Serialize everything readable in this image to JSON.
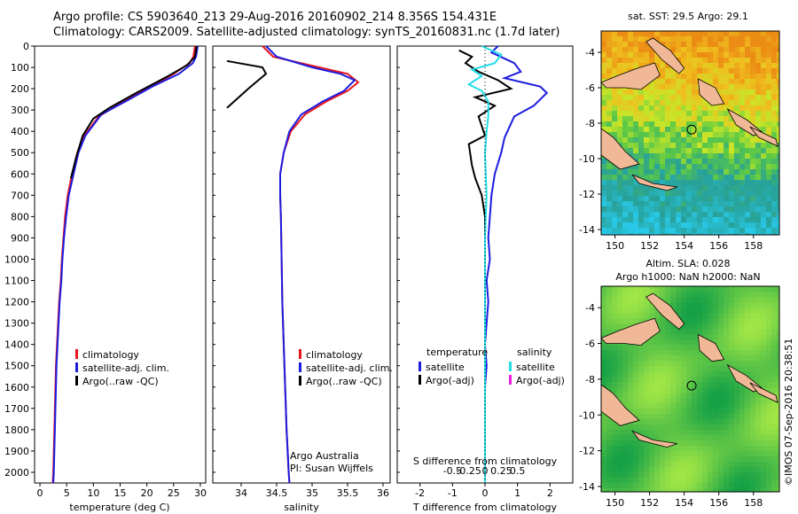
{
  "header": {
    "line1": "Argo profile: CS 5903640_213 29-Aug-2016 20160902_214 8.356S 154.431E",
    "line2": "Climatology: CARS2009. Satellite-adjusted climatology: synTS_20160831.nc (1.7d later)"
  },
  "side_stamp": "©IMOS 07-Sep-2016 20:38:51",
  "colors": {
    "climatology": "#e8141e",
    "satellite": "#1c1ce0",
    "argo": "#000000",
    "sal_sat": "#22dde8",
    "sal_argo": "#e81ee0",
    "land": "#f0b896"
  },
  "chart_data": [
    {
      "type": "line",
      "panel": "temperature",
      "xlabel": "temperature (deg C)",
      "xlim": [
        -1,
        31
      ],
      "xticks": [
        0,
        5,
        10,
        15,
        20,
        25,
        30
      ],
      "ylim": [
        2050,
        0
      ],
      "yticks": [
        0,
        100,
        200,
        300,
        400,
        500,
        600,
        700,
        800,
        900,
        1000,
        1100,
        1200,
        1300,
        1400,
        1500,
        1600,
        1700,
        1800,
        1900,
        2000
      ],
      "legend": [
        "climatology",
        "satellite-adj. clim.",
        "Argo(..raw -QC)"
      ],
      "series": [
        {
          "name": "climatology",
          "color": "#e8141e",
          "points": [
            [
              29,
              0
            ],
            [
              28.7,
              50
            ],
            [
              28,
              80
            ],
            [
              25,
              130
            ],
            [
              20,
              200
            ],
            [
              15,
              270
            ],
            [
              11,
              330
            ],
            [
              8,
              430
            ],
            [
              7,
              500
            ],
            [
              6,
              600
            ],
            [
              5.2,
              700
            ],
            [
              4.7,
              800
            ],
            [
              4.4,
              900
            ],
            [
              4.1,
              1000
            ],
            [
              3.9,
              1100
            ],
            [
              3.6,
              1200
            ],
            [
              3.4,
              1300
            ],
            [
              3.2,
              1400
            ],
            [
              3.0,
              1500
            ],
            [
              2.9,
              1600
            ],
            [
              2.8,
              1700
            ],
            [
              2.7,
              1800
            ],
            [
              2.6,
              1900
            ],
            [
              2.5,
              2000
            ],
            [
              2.4,
              2050
            ]
          ]
        },
        {
          "name": "satellite-adj. clim.",
          "color": "#1c1ce0",
          "points": [
            [
              29.5,
              0
            ],
            [
              29.2,
              50
            ],
            [
              28.6,
              80
            ],
            [
              26,
              130
            ],
            [
              21,
              190
            ],
            [
              16,
              260
            ],
            [
              11.5,
              320
            ],
            [
              8.5,
              420
            ],
            [
              7.2,
              500
            ],
            [
              6.3,
              600
            ],
            [
              5.4,
              700
            ],
            [
              4.9,
              800
            ],
            [
              4.5,
              900
            ],
            [
              4.2,
              1000
            ],
            [
              4.0,
              1100
            ],
            [
              3.7,
              1200
            ],
            [
              3.5,
              1300
            ],
            [
              3.3,
              1400
            ],
            [
              3.1,
              1500
            ],
            [
              3.0,
              1600
            ],
            [
              2.9,
              1700
            ],
            [
              2.8,
              1800
            ],
            [
              2.7,
              1900
            ],
            [
              2.6,
              2000
            ],
            [
              2.5,
              2050
            ]
          ]
        },
        {
          "name": "Argo(..raw -QC)",
          "color": "#000000",
          "points": [
            [
              29.3,
              0
            ],
            [
              29,
              50
            ],
            [
              27.5,
              90
            ],
            [
              24,
              140
            ],
            [
              18,
              220
            ],
            [
              13,
              290
            ],
            [
              10,
              340
            ],
            [
              8,
              420
            ],
            [
              6.8,
              520
            ],
            [
              5.8,
              620
            ]
          ]
        }
      ]
    },
    {
      "type": "line",
      "panel": "salinity",
      "xlabel": "salinity",
      "xlim": [
        33.6,
        36.1
      ],
      "xticks": [
        34,
        34.5,
        35,
        35.5,
        36
      ],
      "ylim": [
        2050,
        0
      ],
      "legend": [
        "climatology",
        "satellite-adj. clim.",
        "Argo(..raw -QC)"
      ],
      "annotation": [
        "Argo Australia",
        "PI: Susan Wijffels"
      ],
      "series": [
        {
          "name": "climatology",
          "color": "#e8141e",
          "points": [
            [
              34.3,
              0
            ],
            [
              34.45,
              50
            ],
            [
              35.1,
              100
            ],
            [
              35.5,
              130
            ],
            [
              35.65,
              170
            ],
            [
              35.5,
              210
            ],
            [
              35.2,
              260
            ],
            [
              34.9,
              320
            ],
            [
              34.7,
              400
            ],
            [
              34.6,
              500
            ],
            [
              34.55,
              600
            ],
            [
              34.55,
              700
            ],
            [
              34.56,
              800
            ],
            [
              34.57,
              1000
            ],
            [
              34.58,
              1200
            ],
            [
              34.6,
              1400
            ],
            [
              34.62,
              1600
            ],
            [
              34.64,
              1800
            ],
            [
              34.67,
              2000
            ],
            [
              34.68,
              2050
            ]
          ]
        },
        {
          "name": "satellite-adj. clim.",
          "color": "#1c1ce0",
          "points": [
            [
              34.35,
              0
            ],
            [
              34.5,
              50
            ],
            [
              35.0,
              100
            ],
            [
              35.4,
              130
            ],
            [
              35.6,
              160
            ],
            [
              35.45,
              210
            ],
            [
              35.15,
              260
            ],
            [
              34.85,
              320
            ],
            [
              34.68,
              400
            ],
            [
              34.6,
              500
            ],
            [
              34.55,
              600
            ],
            [
              34.55,
              700
            ],
            [
              34.56,
              800
            ],
            [
              34.57,
              1000
            ],
            [
              34.58,
              1200
            ],
            [
              34.6,
              1400
            ],
            [
              34.62,
              1600
            ],
            [
              34.64,
              1800
            ],
            [
              34.67,
              2000
            ],
            [
              34.68,
              2050
            ]
          ]
        },
        {
          "name": "Argo(..raw -QC)",
          "color": "#000000",
          "points": [
            [
              33.8,
              70
            ],
            [
              34.3,
              100
            ],
            [
              34.35,
              130
            ],
            [
              34.1,
              200
            ],
            [
              33.8,
              290
            ]
          ]
        }
      ]
    },
    {
      "type": "line",
      "panel": "difference",
      "xlabel_top": "S difference from climatology",
      "xlabel_bottom": "T difference from climatology",
      "xticks_T": [
        -2,
        -1,
        0,
        1,
        2
      ],
      "xticks_S_labels": [
        "-0.5",
        "-0.25",
        "0",
        "0.25",
        "0.5"
      ],
      "xticks_S_values": [
        -1,
        -0.5,
        0,
        0.5,
        1
      ],
      "xlim": [
        -2.7,
        2.7
      ],
      "ylim": [
        2050,
        0
      ],
      "legend_temperature": {
        "title": "temperature",
        "items": [
          "satellite",
          "Argo(-adj)"
        ]
      },
      "legend_salinity": {
        "title": "salinity",
        "items": [
          "satellite",
          "Argo(-adj)"
        ]
      },
      "series": [
        {
          "name": "T satellite",
          "color": "#1c1ce0",
          "points": [
            [
              0.4,
              0
            ],
            [
              0.2,
              30
            ],
            [
              0.9,
              80
            ],
            [
              1.1,
              120
            ],
            [
              0.6,
              150
            ],
            [
              1.7,
              190
            ],
            [
              1.9,
              220
            ],
            [
              1.5,
              280
            ],
            [
              0.9,
              330
            ],
            [
              0.6,
              430
            ],
            [
              0.5,
              500
            ],
            [
              0.3,
              600
            ],
            [
              0.2,
              700
            ],
            [
              0.15,
              800
            ],
            [
              0.1,
              900
            ],
            [
              0.15,
              1000
            ],
            [
              0.05,
              1100
            ],
            [
              0.1,
              1200
            ],
            [
              0.05,
              1300
            ],
            [
              0.0,
              1400
            ],
            [
              0.05,
              1500
            ],
            [
              0.0,
              1600
            ],
            [
              0.0,
              1800
            ],
            [
              0.0,
              2000
            ],
            [
              0.0,
              2050
            ]
          ]
        },
        {
          "name": "T Argo(-adj)",
          "color": "#000000",
          "points": [
            [
              -0.8,
              20
            ],
            [
              -0.4,
              50
            ],
            [
              -0.6,
              80
            ],
            [
              -0.2,
              120
            ],
            [
              0.4,
              160
            ],
            [
              0.8,
              200
            ],
            [
              -0.3,
              240
            ],
            [
              0.3,
              280
            ],
            [
              -0.2,
              330
            ],
            [
              0.0,
              420
            ],
            [
              -0.5,
              460
            ],
            [
              -0.4,
              560
            ],
            [
              -0.3,
              620
            ],
            [
              -0.1,
              700
            ],
            [
              0.0,
              800
            ],
            [
              0.0,
              900
            ]
          ]
        },
        {
          "name": "S satellite",
          "color": "#22dde8",
          "points": [
            [
              -0.1,
              0
            ],
            [
              0.5,
              40
            ],
            [
              0.3,
              80
            ],
            [
              -0.4,
              110
            ],
            [
              -0.1,
              140
            ],
            [
              -0.5,
              180
            ],
            [
              -0.1,
              210
            ],
            [
              0.1,
              260
            ],
            [
              0.1,
              330
            ],
            [
              0.05,
              400
            ],
            [
              0.0,
              500
            ],
            [
              0.05,
              700
            ],
            [
              0.0,
              900
            ],
            [
              0.0,
              1200
            ],
            [
              0.0,
              1500
            ],
            [
              0.0,
              1800
            ],
            [
              0.0,
              2050
            ]
          ]
        },
        {
          "name": "S Argo(-adj)",
          "color": "#e81ee0",
          "points": []
        }
      ]
    },
    {
      "type": "heatmap",
      "panel": "sst_map",
      "title": "sat. SST: 29.5 Argo: 29.1",
      "xlim": [
        149.2,
        159.5
      ],
      "ylim": [
        -14.3,
        -2.8
      ],
      "xticks": [
        150,
        152,
        154,
        156,
        158
      ],
      "yticks": [
        -4,
        -6,
        -8,
        -10,
        -12,
        -14
      ],
      "marker": [
        154.43,
        -8.36
      ]
    },
    {
      "type": "heatmap",
      "panel": "sla_map",
      "title_line1": "Altim. SLA: 0.028",
      "title_line2": "Argo h1000: NaN h2000: NaN",
      "xlim": [
        149.2,
        159.5
      ],
      "ylim": [
        -14.3,
        -2.8
      ],
      "xticks": [
        150,
        152,
        154,
        156,
        158
      ],
      "yticks": [
        -4,
        -6,
        -8,
        -10,
        -12,
        -14
      ],
      "marker": [
        154.43,
        -8.36
      ]
    }
  ]
}
